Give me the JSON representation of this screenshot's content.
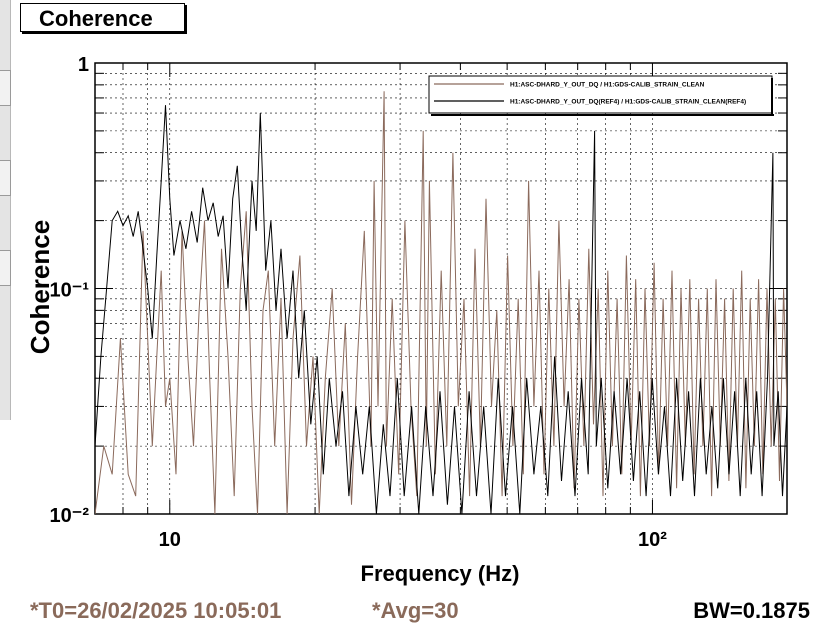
{
  "title": "Coherence",
  "footer": {
    "t0": "*T0=26/02/2025 10:05:01",
    "avg": "*Avg=30",
    "bw": "BW=0.1875"
  },
  "colors": {
    "current": "#8b6a5c",
    "reference": "#000000"
  },
  "chart_data": {
    "type": "line",
    "xlabel": "Frequency (Hz)",
    "ylabel": "Coherence",
    "xscale": "log",
    "yscale": "log",
    "xlim": [
      7,
      190
    ],
    "ylim": [
      0.01,
      1
    ],
    "xticks": [
      {
        "v": 10,
        "label": "10"
      },
      {
        "v": 100,
        "label": "10²"
      }
    ],
    "yticks": [
      {
        "v": 0.01,
        "label": "10⁻²"
      },
      {
        "v": 0.1,
        "label": "10⁻¹"
      },
      {
        "v": 1,
        "label": "1"
      }
    ],
    "grid": true,
    "legend_position": "top-right",
    "series": [
      {
        "name": "H1:ASC-DHARD_Y_OUT_DQ / H1:GDS-CALIB_STRAIN_CLEAN",
        "color": "#8b6a5c",
        "width": 1,
        "points": [
          [
            7.0,
            0.01
          ],
          [
            7.3,
            0.02
          ],
          [
            7.6,
            0.015
          ],
          [
            7.9,
            0.06
          ],
          [
            8.2,
            0.015
          ],
          [
            8.5,
            0.012
          ],
          [
            8.8,
            0.18
          ],
          [
            9.0,
            0.06
          ],
          [
            9.2,
            0.02
          ],
          [
            9.4,
            0.05
          ],
          [
            9.6,
            0.12
          ],
          [
            9.8,
            0.03
          ],
          [
            10.0,
            0.04
          ],
          [
            10.3,
            0.015
          ],
          [
            10.6,
            0.18
          ],
          [
            10.9,
            0.05
          ],
          [
            11.2,
            0.02
          ],
          [
            11.5,
            0.08
          ],
          [
            11.8,
            0.2
          ],
          [
            12.1,
            0.04
          ],
          [
            12.4,
            0.01
          ],
          [
            12.8,
            0.15
          ],
          [
            13.2,
            0.05
          ],
          [
            13.6,
            0.012
          ],
          [
            14.0,
            0.1
          ],
          [
            14.4,
            0.22
          ],
          [
            14.8,
            0.03
          ],
          [
            15.2,
            0.01
          ],
          [
            15.6,
            0.08
          ],
          [
            16.0,
            0.12
          ],
          [
            16.5,
            0.02
          ],
          [
            17.0,
            0.09
          ],
          [
            17.5,
            0.01
          ],
          [
            18.0,
            0.06
          ],
          [
            18.6,
            0.14
          ],
          [
            19.2,
            0.02
          ],
          [
            19.8,
            0.05
          ],
          [
            20.4,
            0.01
          ],
          [
            21.0,
            0.04
          ],
          [
            21.7,
            0.1
          ],
          [
            22.4,
            0.02
          ],
          [
            23.1,
            0.07
          ],
          [
            23.8,
            0.011
          ],
          [
            24.5,
            0.05
          ],
          [
            25.3,
            0.18
          ],
          [
            26.1,
            0.02
          ],
          [
            26.5,
            0.3
          ],
          [
            27.0,
            0.03
          ],
          [
            27.8,
            0.75
          ],
          [
            28.1,
            0.02
          ],
          [
            28.9,
            0.09
          ],
          [
            29.8,
            0.015
          ],
          [
            30.7,
            0.2
          ],
          [
            31.6,
            0.03
          ],
          [
            32.5,
            0.012
          ],
          [
            33.5,
            0.5
          ],
          [
            34.0,
            0.02
          ],
          [
            34.5,
            0.3
          ],
          [
            35.5,
            0.015
          ],
          [
            36.5,
            0.12
          ],
          [
            37.5,
            0.02
          ],
          [
            38.6,
            0.4
          ],
          [
            39.6,
            0.03
          ],
          [
            40.7,
            0.09
          ],
          [
            41.8,
            0.012
          ],
          [
            42.9,
            0.15
          ],
          [
            44.0,
            0.02
          ],
          [
            45.2,
            0.25
          ],
          [
            46.4,
            0.03
          ],
          [
            47.6,
            0.08
          ],
          [
            48.8,
            0.012
          ],
          [
            50.1,
            0.14
          ],
          [
            51.4,
            0.02
          ],
          [
            52.7,
            0.09
          ],
          [
            54.0,
            0.015
          ],
          [
            55.4,
            0.3
          ],
          [
            56.8,
            0.03
          ],
          [
            58.2,
            0.12
          ],
          [
            59.6,
            0.015
          ],
          [
            61.0,
            0.1
          ],
          [
            62.5,
            0.02
          ],
          [
            64.0,
            0.2
          ],
          [
            65.6,
            0.03
          ],
          [
            67.2,
            0.11
          ],
          [
            68.8,
            0.013
          ],
          [
            70.4,
            0.09
          ],
          [
            72.1,
            0.02
          ],
          [
            73.8,
            0.15
          ],
          [
            75.5,
            0.025
          ],
          [
            77.2,
            0.1
          ],
          [
            79.0,
            0.012
          ],
          [
            80.8,
            0.12
          ],
          [
            82.6,
            0.02
          ],
          [
            84.5,
            0.09
          ],
          [
            86.4,
            0.015
          ],
          [
            88.3,
            0.14
          ],
          [
            90.3,
            0.02
          ],
          [
            92.3,
            0.11
          ],
          [
            94.4,
            0.012
          ],
          [
            96.5,
            0.1
          ],
          [
            98.6,
            0.02
          ],
          [
            100.8,
            0.13
          ],
          [
            103.0,
            0.015
          ],
          [
            105.2,
            0.09
          ],
          [
            107.5,
            0.02
          ],
          [
            109.8,
            0.12
          ],
          [
            112.2,
            0.013
          ],
          [
            114.6,
            0.1
          ],
          [
            117.0,
            0.02
          ],
          [
            119.5,
            0.11
          ],
          [
            122.0,
            0.015
          ],
          [
            124.6,
            0.09
          ],
          [
            127.2,
            0.02
          ],
          [
            129.9,
            0.1
          ],
          [
            132.6,
            0.012
          ],
          [
            135.4,
            0.11
          ],
          [
            138.2,
            0.02
          ],
          [
            141.1,
            0.09
          ],
          [
            144.0,
            0.014
          ],
          [
            147.0,
            0.1
          ],
          [
            150.0,
            0.02
          ],
          [
            153.1,
            0.12
          ],
          [
            156.2,
            0.013
          ],
          [
            159.4,
            0.09
          ],
          [
            162.6,
            0.02
          ],
          [
            165.9,
            0.11
          ],
          [
            169.3,
            0.015
          ],
          [
            172.7,
            0.1
          ],
          [
            176.2,
            0.02
          ],
          [
            179.7,
            0.09
          ],
          [
            183.3,
            0.014
          ],
          [
            186.9,
            0.1
          ],
          [
            190.0,
            0.03
          ]
        ]
      },
      {
        "name": "H1:ASC-DHARD_Y_OUT_DQ(REF4) / H1:GDS-CALIB_STRAIN_CLEAN(REF4)",
        "color": "#000000",
        "width": 1,
        "points": [
          [
            7.0,
            0.02
          ],
          [
            7.2,
            0.05
          ],
          [
            7.4,
            0.1
          ],
          [
            7.6,
            0.2
          ],
          [
            7.8,
            0.22
          ],
          [
            8.0,
            0.19
          ],
          [
            8.2,
            0.21
          ],
          [
            8.4,
            0.17
          ],
          [
            8.6,
            0.22
          ],
          [
            8.8,
            0.15
          ],
          [
            9.0,
            0.1
          ],
          [
            9.2,
            0.06
          ],
          [
            9.4,
            0.14
          ],
          [
            9.6,
            0.3
          ],
          [
            9.8,
            0.65
          ],
          [
            10.0,
            0.25
          ],
          [
            10.2,
            0.14
          ],
          [
            10.5,
            0.2
          ],
          [
            10.8,
            0.15
          ],
          [
            11.1,
            0.22
          ],
          [
            11.4,
            0.16
          ],
          [
            11.7,
            0.28
          ],
          [
            12.0,
            0.2
          ],
          [
            12.3,
            0.24
          ],
          [
            12.6,
            0.17
          ],
          [
            12.9,
            0.21
          ],
          [
            13.2,
            0.1
          ],
          [
            13.5,
            0.25
          ],
          [
            13.8,
            0.35
          ],
          [
            14.1,
            0.15
          ],
          [
            14.4,
            0.08
          ],
          [
            14.8,
            0.3
          ],
          [
            15.1,
            0.18
          ],
          [
            15.4,
            0.6
          ],
          [
            15.8,
            0.12
          ],
          [
            16.2,
            0.2
          ],
          [
            16.6,
            0.08
          ],
          [
            17.0,
            0.15
          ],
          [
            17.5,
            0.06
          ],
          [
            18.0,
            0.12
          ],
          [
            18.5,
            0.04
          ],
          [
            19.0,
            0.08
          ],
          [
            19.6,
            0.025
          ],
          [
            20.2,
            0.05
          ],
          [
            20.8,
            0.015
          ],
          [
            21.4,
            0.04
          ],
          [
            22.1,
            0.02
          ],
          [
            22.8,
            0.035
          ],
          [
            23.5,
            0.012
          ],
          [
            24.3,
            0.03
          ],
          [
            25.1,
            0.015
          ],
          [
            25.9,
            0.03
          ],
          [
            26.8,
            0.01
          ],
          [
            27.7,
            0.025
          ],
          [
            28.6,
            0.012
          ],
          [
            29.6,
            0.04
          ],
          [
            30.6,
            0.012
          ],
          [
            31.7,
            0.03
          ],
          [
            32.8,
            0.01
          ],
          [
            33.9,
            0.03
          ],
          [
            35.1,
            0.012
          ],
          [
            36.3,
            0.035
          ],
          [
            37.6,
            0.011
          ],
          [
            38.9,
            0.03
          ],
          [
            40.3,
            0.01
          ],
          [
            41.7,
            0.035
          ],
          [
            43.2,
            0.012
          ],
          [
            44.7,
            0.03
          ],
          [
            46.3,
            0.01
          ],
          [
            47.9,
            0.04
          ],
          [
            49.6,
            0.012
          ],
          [
            51.3,
            0.03
          ],
          [
            53.1,
            0.01
          ],
          [
            54.9,
            0.04
          ],
          [
            56.8,
            0.015
          ],
          [
            58.7,
            0.03
          ],
          [
            60.7,
            0.012
          ],
          [
            62.7,
            0.05
          ],
          [
            64.8,
            0.014
          ],
          [
            66.9,
            0.035
          ],
          [
            69.1,
            0.012
          ],
          [
            71.3,
            0.04
          ],
          [
            73.6,
            0.015
          ],
          [
            75.9,
            0.5
          ],
          [
            76.5,
            0.02
          ],
          [
            78.3,
            0.04
          ],
          [
            80.8,
            0.013
          ],
          [
            83.3,
            0.035
          ],
          [
            85.9,
            0.015
          ],
          [
            88.6,
            0.04
          ],
          [
            91.3,
            0.014
          ],
          [
            94.1,
            0.035
          ],
          [
            97.0,
            0.012
          ],
          [
            99.9,
            0.04
          ],
          [
            102.9,
            0.015
          ],
          [
            105.9,
            0.03
          ],
          [
            109.0,
            0.012
          ],
          [
            112.2,
            0.04
          ],
          [
            115.5,
            0.014
          ],
          [
            118.8,
            0.035
          ],
          [
            122.2,
            0.012
          ],
          [
            125.7,
            0.04
          ],
          [
            129.2,
            0.015
          ],
          [
            132.8,
            0.03
          ],
          [
            136.5,
            0.013
          ],
          [
            140.3,
            0.04
          ],
          [
            144.1,
            0.015
          ],
          [
            148.0,
            0.035
          ],
          [
            152.0,
            0.012
          ],
          [
            156.1,
            0.04
          ],
          [
            160.2,
            0.015
          ],
          [
            164.4,
            0.035
          ],
          [
            168.7,
            0.012
          ],
          [
            173.1,
            0.04
          ],
          [
            177.6,
            0.4
          ],
          [
            178.5,
            0.02
          ],
          [
            182.2,
            0.035
          ],
          [
            186.0,
            0.012
          ],
          [
            190.0,
            0.03
          ]
        ]
      }
    ]
  }
}
